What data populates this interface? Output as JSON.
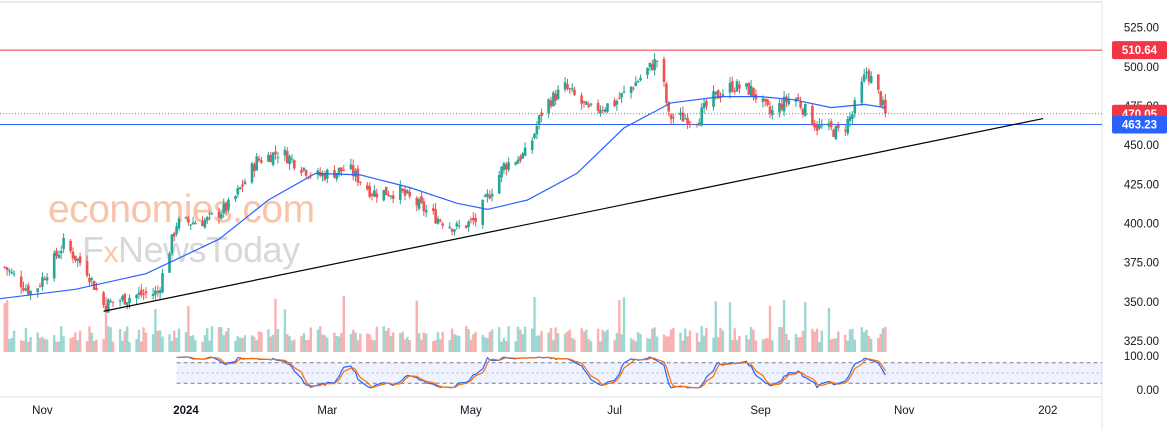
{
  "watermark": {
    "line1": "economies.com",
    "line2_prefix": "F",
    "line2_x": "x",
    "line2_rest": "NewsToday"
  },
  "colors": {
    "bull": "#26a69a",
    "bear": "#ef5350",
    "ma": "#2962ff",
    "stoch_k": "#2962ff",
    "stoch_d": "#ff6d00",
    "resistance": "#f23645",
    "support": "#2962ff",
    "trend": "#000000",
    "price_label": "#f23645",
    "support_label": "#2962ff",
    "watermark1": "#f7b08a",
    "watermark2": "#c8c8c8",
    "axis_text": "#131722"
  },
  "chart_data": {
    "type": "candlestick",
    "price_axis": {
      "ticks": [
        525,
        500,
        475,
        450,
        425,
        400,
        375,
        350,
        325
      ],
      "tick_labels": [
        "525.00",
        "500.00",
        "475.00",
        "450.00",
        "425.00",
        "400.00",
        "375.00",
        "350.00",
        "325.00"
      ],
      "range": [
        318,
        535
      ]
    },
    "time_axis": {
      "labels": [
        "Nov",
        "2024",
        "Mar",
        "May",
        "Jul",
        "Sep",
        "Nov",
        "202"
      ],
      "label_dates": [
        "2023-11-01",
        "2024-01-01",
        "2024-03-01",
        "2024-05-01",
        "2024-07-01",
        "2024-09-01",
        "2024-11-01",
        "2025-01-01"
      ],
      "range": [
        "2023-10-14",
        "2025-01-24"
      ]
    },
    "levels": {
      "resistance": {
        "value": 510.64,
        "label": "510.64"
      },
      "last_price": {
        "value": 470.05,
        "label": "470.05"
      },
      "support": {
        "value": 463.23,
        "label": "463.23"
      }
    },
    "trendline": {
      "start": {
        "date": "2023-11-27",
        "price": 344
      },
      "end": {
        "date": "2024-12-30",
        "price": 467
      }
    },
    "moving_average": [
      [
        "2023-10-14",
        352
      ],
      [
        "2023-11-15",
        358
      ],
      [
        "2023-12-15",
        368
      ],
      [
        "2024-01-15",
        390
      ],
      [
        "2024-02-05",
        415
      ],
      [
        "2024-02-25",
        432
      ],
      [
        "2024-03-15",
        431
      ],
      [
        "2024-04-05",
        423
      ],
      [
        "2024-04-25",
        413
      ],
      [
        "2024-05-08",
        409
      ],
      [
        "2024-05-25",
        415
      ],
      [
        "2024-06-15",
        432
      ],
      [
        "2024-07-05",
        461
      ],
      [
        "2024-07-25",
        477
      ],
      [
        "2024-08-15",
        481
      ],
      [
        "2024-09-01",
        481
      ],
      [
        "2024-09-15",
        479
      ],
      [
        "2024-10-01",
        474
      ],
      [
        "2024-10-15",
        476
      ],
      [
        "2024-10-24",
        474
      ]
    ],
    "price_path": [
      [
        "2023-10-14",
        375
      ],
      [
        "2023-10-28",
        355
      ],
      [
        "2023-11-10",
        387
      ],
      [
        "2023-11-20",
        370
      ],
      [
        "2023-11-27",
        348
      ],
      [
        "2023-12-10",
        354
      ],
      [
        "2023-12-20",
        356
      ],
      [
        "2023-12-28",
        400
      ],
      [
        "2024-01-10",
        402
      ],
      [
        "2024-01-20",
        412
      ],
      [
        "2024-01-31",
        440
      ],
      [
        "2024-02-10",
        446
      ],
      [
        "2024-02-25",
        430
      ],
      [
        "2024-03-10",
        435
      ],
      [
        "2024-03-20",
        420
      ],
      [
        "2024-04-01",
        420
      ],
      [
        "2024-04-15",
        405
      ],
      [
        "2024-04-25",
        397
      ],
      [
        "2024-05-03",
        402
      ],
      [
        "2024-05-15",
        437
      ],
      [
        "2024-05-25",
        445
      ],
      [
        "2024-06-01",
        475
      ],
      [
        "2024-06-10",
        487
      ],
      [
        "2024-06-20",
        472
      ],
      [
        "2024-07-01",
        477
      ],
      [
        "2024-07-10",
        490
      ],
      [
        "2024-07-20",
        506
      ],
      [
        "2024-07-24",
        468
      ],
      [
        "2024-08-05",
        467
      ],
      [
        "2024-08-12",
        480
      ],
      [
        "2024-08-20",
        488
      ],
      [
        "2024-08-28",
        485
      ],
      [
        "2024-09-05",
        470
      ],
      [
        "2024-09-15",
        482
      ],
      [
        "2024-09-25",
        462
      ],
      [
        "2024-10-05",
        458
      ],
      [
        "2024-10-10",
        470
      ],
      [
        "2024-10-16",
        497
      ],
      [
        "2024-10-20",
        487
      ],
      [
        "2024-10-24",
        470.05
      ]
    ],
    "stochastic": {
      "ticks": [
        100,
        0
      ],
      "tick_labels": [
        "100.00",
        "0.00"
      ],
      "levels": [
        80,
        20
      ],
      "start_date": "2023-12-28"
    }
  }
}
